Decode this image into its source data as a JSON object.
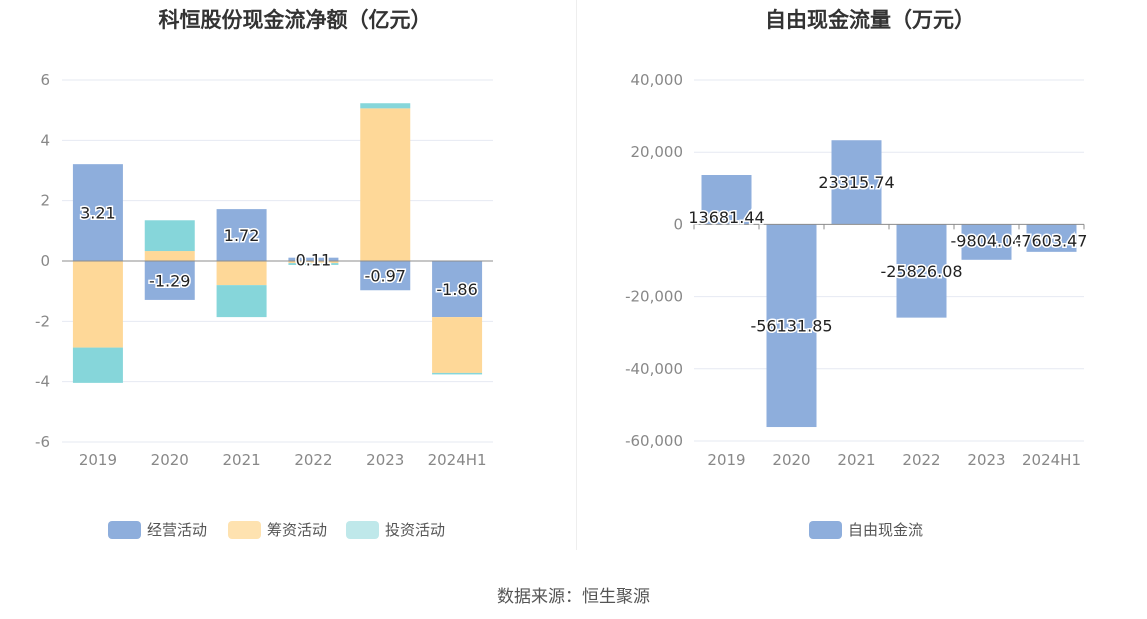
{
  "source_text": "数据来源：恒生聚源",
  "chart_data": [
    {
      "type": "bar",
      "stacked": true,
      "title": "科恒股份现金流净额（亿元）",
      "categories": [
        "2019",
        "2020",
        "2021",
        "2022",
        "2023",
        "2024H1"
      ],
      "ylim": [
        -6,
        6
      ],
      "yticks": [
        6,
        4,
        2,
        0,
        -2,
        -4,
        -6
      ],
      "ytick_labels": [
        "6",
        "4",
        "2",
        "0",
        "-2",
        "-4",
        "-6"
      ],
      "grid": true,
      "legend_position": "bottom-center",
      "series": [
        {
          "name": "经营活动",
          "color": "#8eaedc",
          "values": [
            3.21,
            -1.29,
            1.72,
            0.11,
            -0.97,
            -1.86
          ],
          "labels": [
            "3.21",
            "-1.29",
            "1.72",
            "0.11",
            "-0.97",
            "-1.86"
          ]
        },
        {
          "name": "筹资活动",
          "color": "#fed898",
          "values": [
            -2.87,
            0.33,
            -0.8,
            -0.07,
            5.06,
            -1.85
          ]
        },
        {
          "name": "投资活动",
          "color": "#86d6da",
          "values": [
            -1.17,
            1.02,
            -1.06,
            -0.06,
            0.17,
            -0.05
          ]
        }
      ]
    },
    {
      "type": "bar",
      "title": "自由现金流量（万元）",
      "categories": [
        "2019",
        "2020",
        "2021",
        "2022",
        "2023",
        "2024H1"
      ],
      "ylim": [
        -60000,
        40000
      ],
      "yticks": [
        40000,
        20000,
        0,
        -20000,
        -40000,
        -60000
      ],
      "ytick_labels": [
        "40,000",
        "20,000",
        "0",
        "-20,000",
        "-40,000",
        "-60,000"
      ],
      "grid": true,
      "legend_position": "bottom-center",
      "series": [
        {
          "name": "自由现金流",
          "color": "#8eaedc",
          "values": [
            13681.44,
            -56131.85,
            23315.74,
            -25826.08,
            -9804.04,
            -7603.47
          ],
          "labels": [
            "13681.44",
            "-56131.85",
            "23315.74",
            "-25826.08",
            "-9804.04",
            "-7603.47"
          ]
        }
      ]
    }
  ]
}
